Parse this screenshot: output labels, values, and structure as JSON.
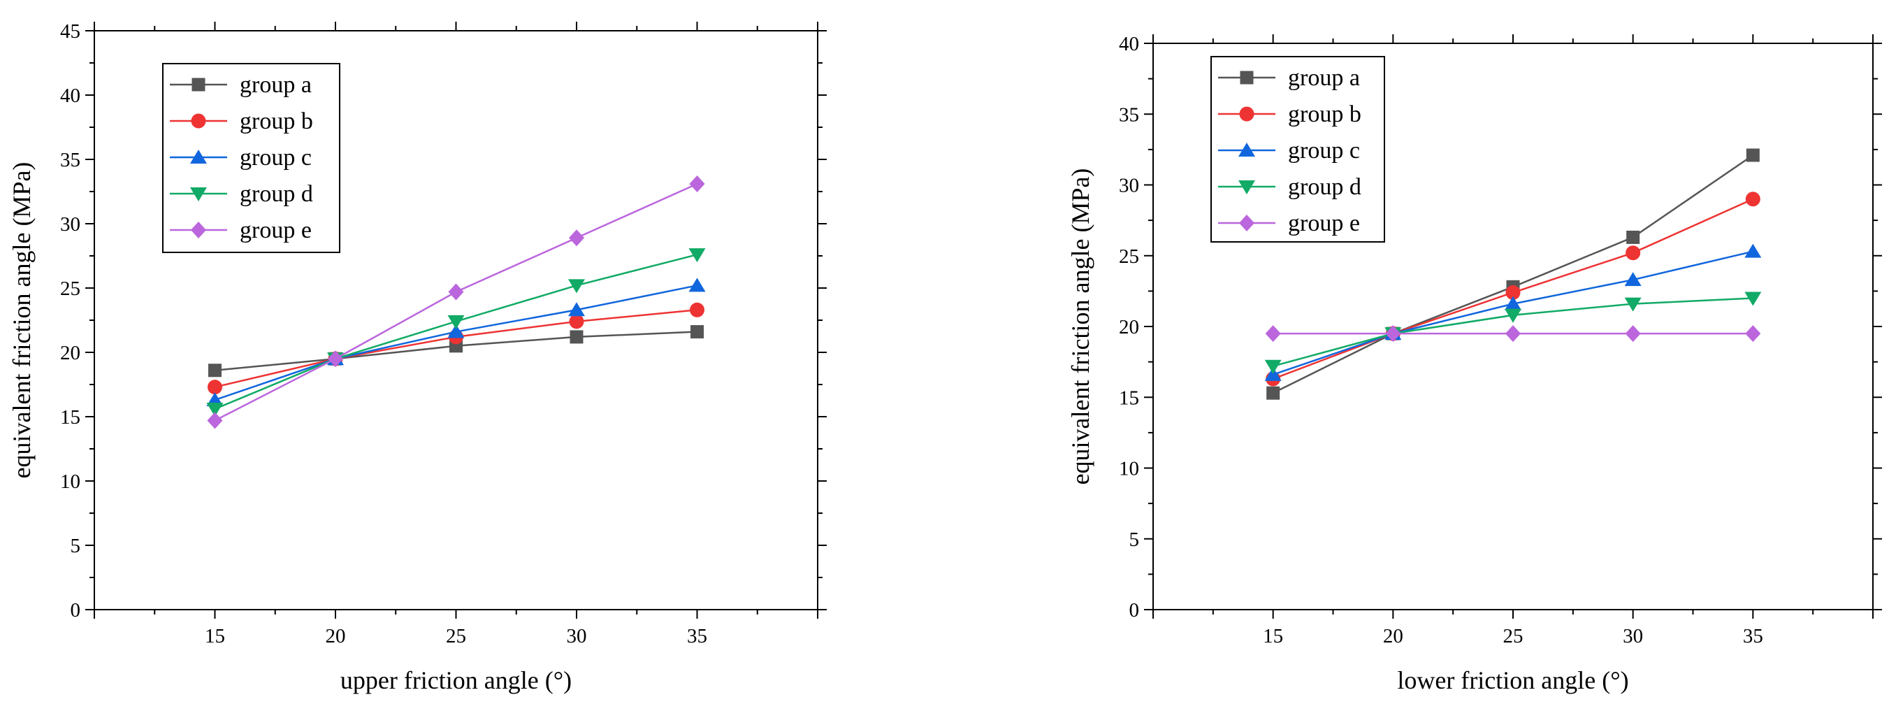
{
  "chart_data": [
    {
      "type": "line",
      "title": "",
      "xlabel": "upper friction angle (°)",
      "ylabel": "equivalent friction angle (MPa)",
      "x": [
        15,
        20,
        25,
        30,
        35
      ],
      "xlim": [
        10,
        40
      ],
      "ylim": [
        0,
        45
      ],
      "x_ticks": [
        "15",
        "20",
        "25",
        "30",
        "35"
      ],
      "y_ticks": [
        "0",
        "5",
        "10",
        "15",
        "20",
        "25",
        "30",
        "35",
        "40",
        "45"
      ],
      "grid": false,
      "legend_position": "top-left",
      "series": [
        {
          "name": "group a",
          "values": [
            18.6,
            19.5,
            20.5,
            21.2,
            21.6
          ],
          "color": "#555555",
          "marker": "square"
        },
        {
          "name": "group b",
          "values": [
            17.3,
            19.5,
            21.2,
            22.4,
            23.3
          ],
          "color": "#ee3333",
          "marker": "circle"
        },
        {
          "name": "group c",
          "values": [
            16.3,
            19.5,
            21.6,
            23.3,
            25.2
          ],
          "color": "#1166dd",
          "marker": "triangle-up"
        },
        {
          "name": "group d",
          "values": [
            15.6,
            19.5,
            22.4,
            25.2,
            27.6
          ],
          "color": "#11aa66",
          "marker": "triangle-down"
        },
        {
          "name": "group e",
          "values": [
            14.7,
            19.5,
            24.7,
            28.9,
            33.1
          ],
          "color": "#bb66dd",
          "marker": "diamond"
        }
      ]
    },
    {
      "type": "line",
      "title": "",
      "xlabel": "lower friction angle (°)",
      "ylabel": "equivalent friction angle (MPa)",
      "x": [
        15,
        20,
        25,
        30,
        35
      ],
      "xlim": [
        10,
        40
      ],
      "ylim": [
        0,
        40
      ],
      "x_ticks": [
        "15",
        "20",
        "25",
        "30",
        "35"
      ],
      "y_ticks": [
        "0",
        "5",
        "10",
        "15",
        "20",
        "25",
        "30",
        "35",
        "40"
      ],
      "grid": false,
      "legend_position": "top-left",
      "series": [
        {
          "name": "group a",
          "values": [
            15.3,
            19.5,
            22.8,
            26.3,
            32.1
          ],
          "color": "#555555",
          "marker": "square"
        },
        {
          "name": "group b",
          "values": [
            16.3,
            19.5,
            22.4,
            25.2,
            29.0
          ],
          "color": "#ee3333",
          "marker": "circle"
        },
        {
          "name": "group c",
          "values": [
            16.6,
            19.5,
            21.6,
            23.3,
            25.3
          ],
          "color": "#1166dd",
          "marker": "triangle-up"
        },
        {
          "name": "group d",
          "values": [
            17.2,
            19.5,
            20.8,
            21.6,
            22.0
          ],
          "color": "#11aa66",
          "marker": "triangle-down"
        },
        {
          "name": "group e",
          "values": [
            19.5,
            19.5,
            19.5,
            19.5,
            19.5
          ],
          "color": "#bb66dd",
          "marker": "diamond"
        }
      ]
    }
  ]
}
